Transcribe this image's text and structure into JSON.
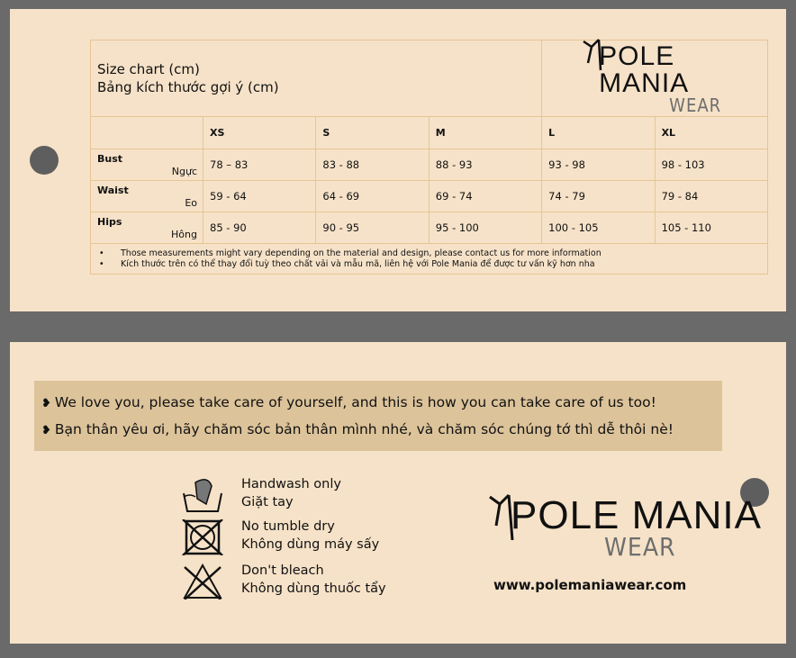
{
  "size_chart": {
    "title_en": "Size chart (cm)",
    "title_vi": "Bảng kích thước gợi ý (cm)",
    "brand": {
      "name": "POLE MANIA",
      "sub": "WEAR"
    },
    "sizes": [
      "XS",
      "S",
      "M",
      "L",
      "XL"
    ],
    "rows": [
      {
        "label_en": "Bust",
        "label_vi": "Ngực",
        "values": [
          "78 – 83",
          "83 - 88",
          "88 - 93",
          "93 - 98",
          "98 - 103"
        ]
      },
      {
        "label_en": "Waist",
        "label_vi": "Eo",
        "values": [
          "59 - 64",
          "64 - 69",
          "69 - 74",
          "74 - 79",
          "79 - 84"
        ]
      },
      {
        "label_en": "Hips",
        "label_vi": "Hông",
        "values": [
          "85 - 90",
          "90 - 95",
          "95 - 100",
          "100 - 105",
          "105 - 110"
        ]
      }
    ],
    "notes": [
      "Those measurements might vary depending on the material and design, please contact us for more information",
      "Kích thước trên có thể thay đổi tuỳ theo chất vải và mẫu mã, liên hệ với Pole Mania để được tư vấn kỹ hơn nha"
    ]
  },
  "care": {
    "banner": [
      "We love you, please take care of yourself, and this is how you can take care of us too!",
      "Bạn thân yêu ơi, hãy chăm sóc bản thân mình nhé, và chăm sóc chúng tớ thì dễ thôi nè!"
    ],
    "items": [
      {
        "icon": "handwash-icon",
        "en": "Handwash only",
        "vi": "Giặt tay"
      },
      {
        "icon": "no-tumble-dry-icon",
        "en": "No tumble dry",
        "vi": "Không dùng máy sấy"
      },
      {
        "icon": "no-bleach-icon",
        "en": "Don't bleach",
        "vi": "Không dùng thuốc tẩy"
      }
    ],
    "brand": {
      "name": "POLE MANIA",
      "sub": "WEAR"
    },
    "website": "www.polemaniawear.com"
  },
  "colors": {
    "card": "#f6e2c8",
    "banner": "#dcc39a",
    "border": "#e6c594",
    "background": "#6a6a6a"
  }
}
